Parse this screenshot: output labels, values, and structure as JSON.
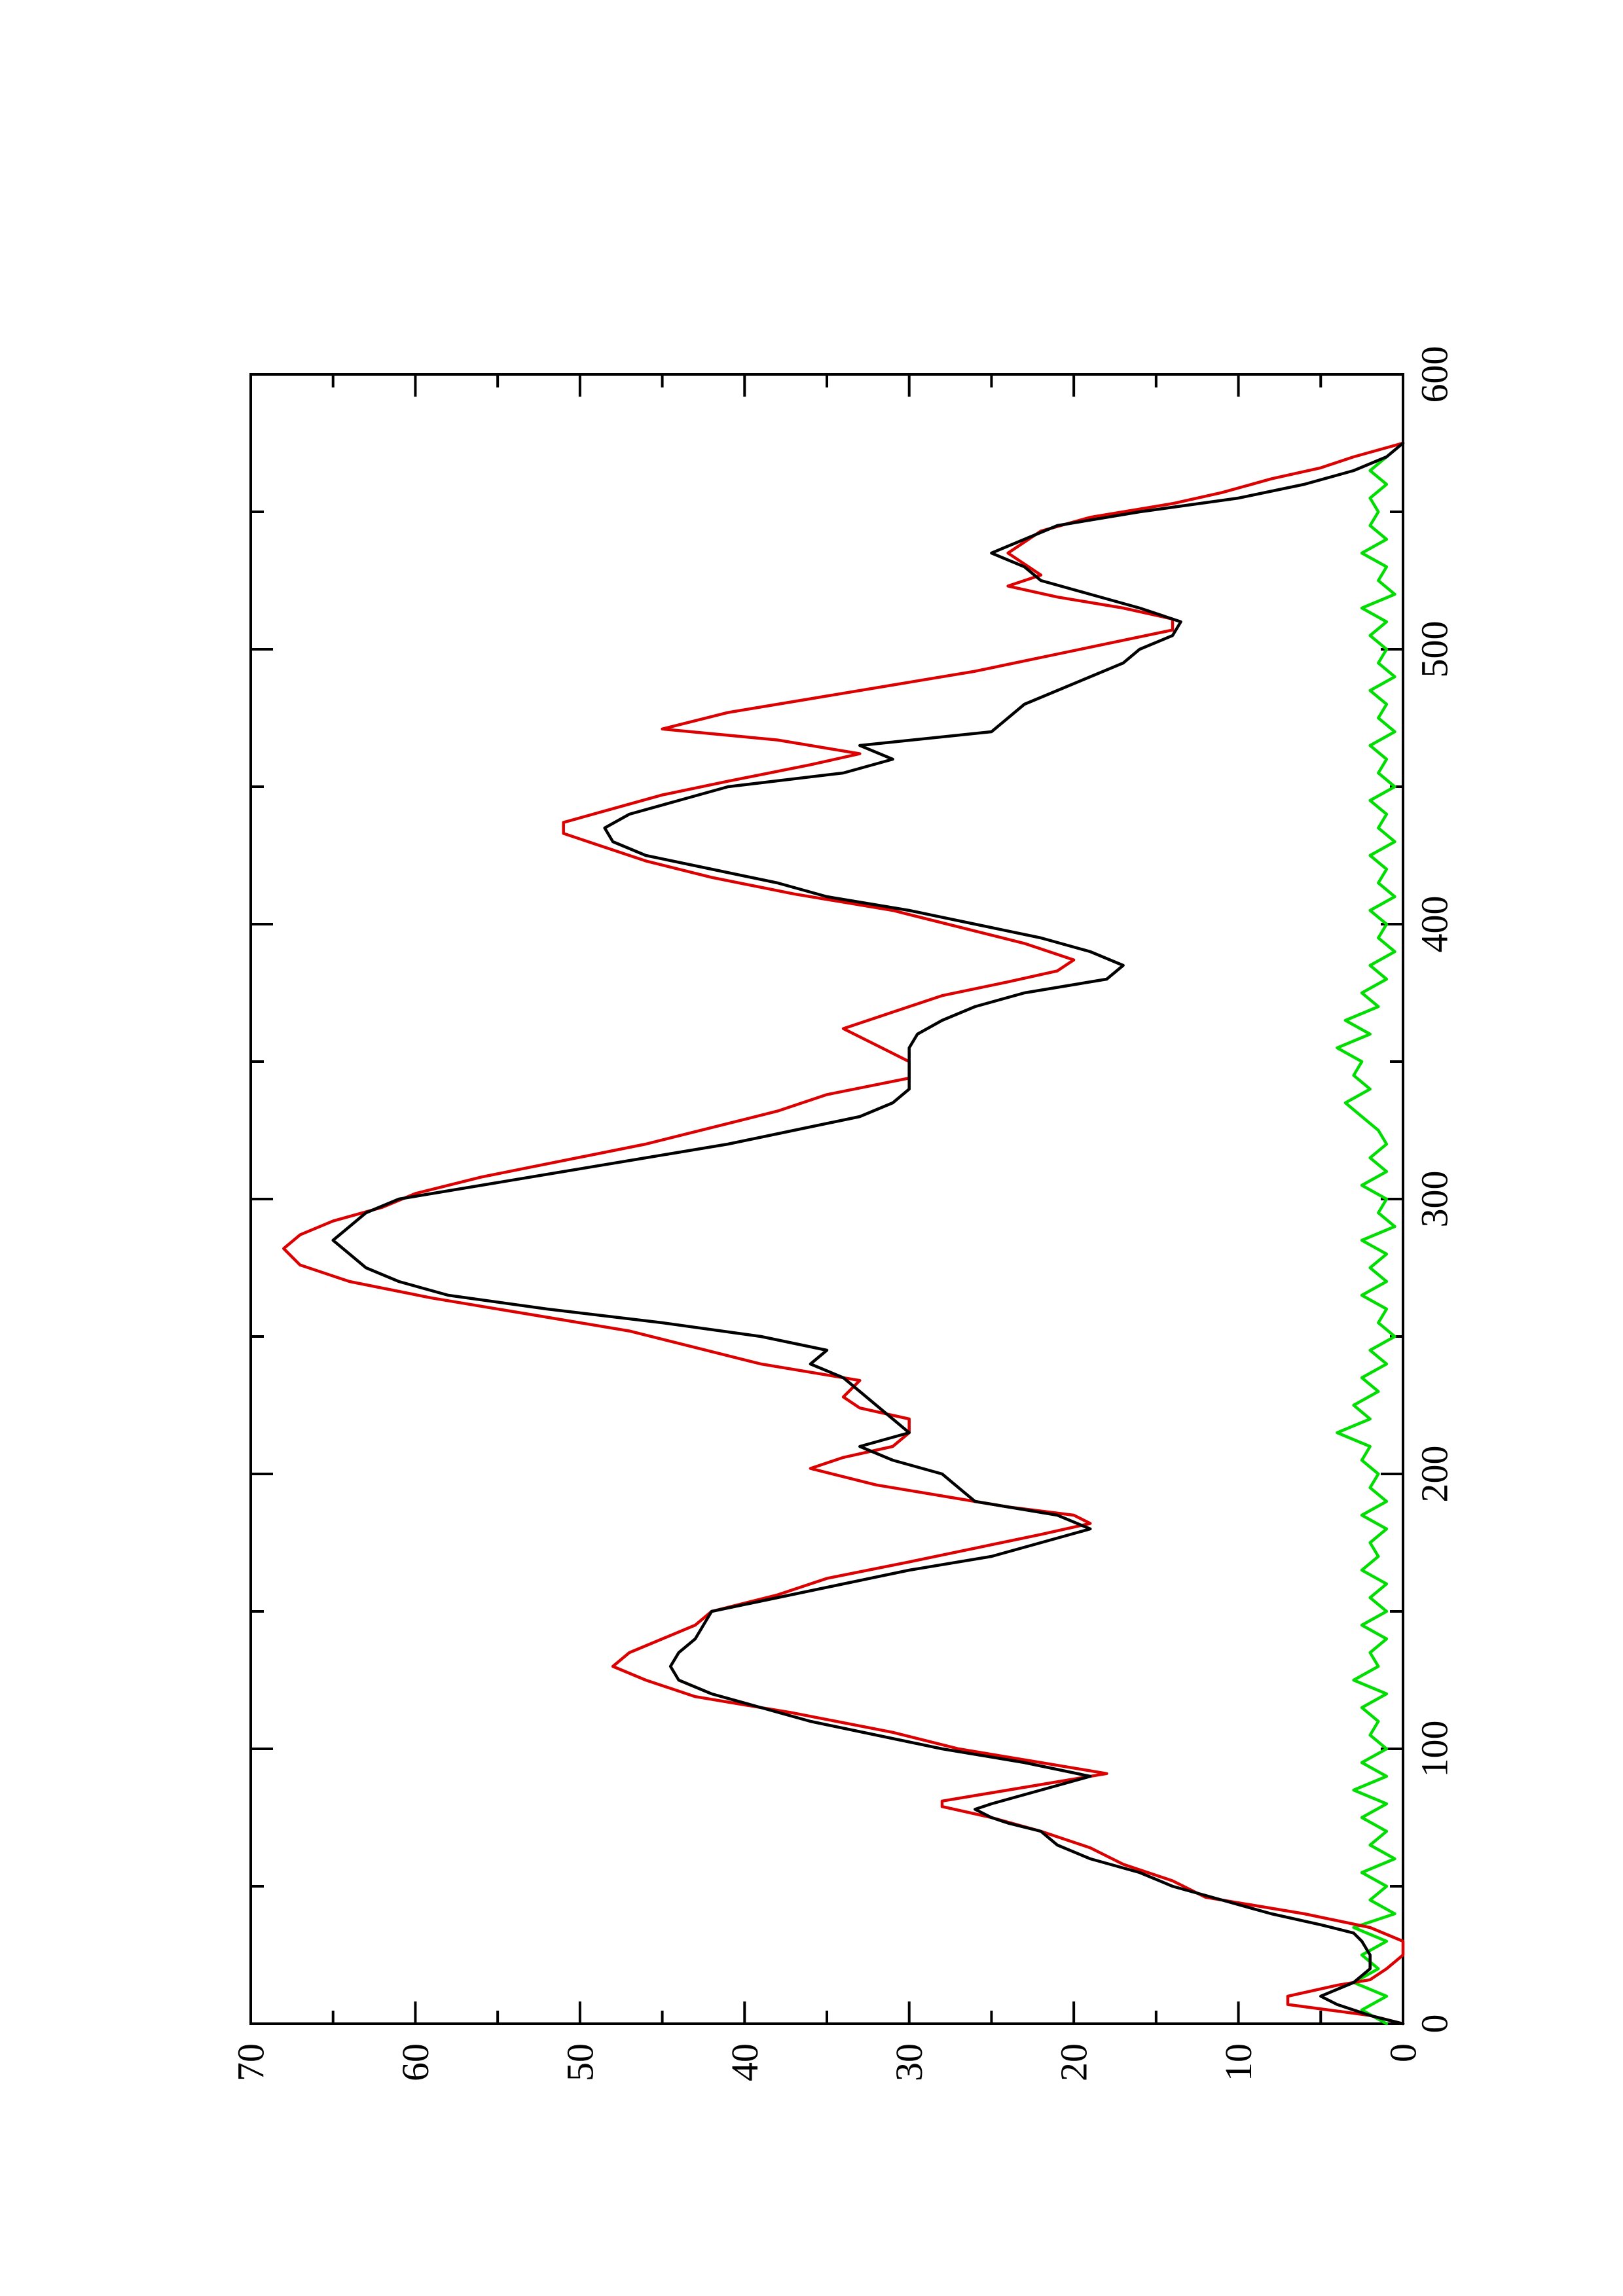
{
  "chart_data": {
    "type": "line",
    "orientation": "rotated-90-ccw",
    "xlim": [
      0,
      600
    ],
    "ylim": [
      0,
      70
    ],
    "x_ticks": [
      0,
      100,
      200,
      300,
      400,
      500,
      600
    ],
    "x_minor_ticks": [
      50,
      150,
      250,
      350,
      450,
      550
    ],
    "y_ticks": [
      0,
      10,
      20,
      30,
      40,
      50,
      60,
      70
    ],
    "y_minor_ticks": [
      5,
      15,
      25,
      35,
      45,
      55,
      65
    ],
    "x_tick_labels": [
      "0",
      "100",
      "200",
      "300",
      "400",
      "500",
      "600"
    ],
    "y_tick_labels": [
      "0",
      "10",
      "20",
      "30",
      "40",
      "50",
      "60",
      "70"
    ],
    "title": "",
    "xlabel": "",
    "ylabel": "",
    "grid": false,
    "legend": "none",
    "series": [
      {
        "color": "#000000",
        "x": [
          0,
          3,
          7,
          10,
          15,
          20,
          25,
          30,
          33,
          36,
          40,
          45,
          50,
          55,
          60,
          65,
          70,
          73,
          75,
          78,
          80,
          85,
          90,
          95,
          100,
          105,
          110,
          115,
          120,
          125,
          130,
          135,
          140,
          145,
          150,
          155,
          160,
          165,
          170,
          175,
          180,
          185,
          190,
          195,
          200,
          205,
          210,
          215,
          220,
          225,
          230,
          235,
          240,
          245,
          250,
          255,
          260,
          265,
          270,
          275,
          280,
          285,
          290,
          295,
          300,
          305,
          310,
          315,
          320,
          325,
          330,
          335,
          340,
          345,
          350,
          355,
          360,
          365,
          370,
          375,
          380,
          385,
          390,
          395,
          400,
          405,
          410,
          415,
          420,
          425,
          430,
          435,
          440,
          445,
          450,
          455,
          460,
          465,
          470,
          475,
          480,
          485,
          490,
          495,
          500,
          505,
          510,
          515,
          520,
          525,
          530,
          535,
          540,
          545,
          550,
          555,
          560,
          565,
          570,
          575
        ],
        "y": [
          0,
          2,
          4,
          5,
          3,
          2,
          2,
          2.5,
          3,
          5,
          8,
          11,
          14,
          16,
          19,
          21,
          22,
          24,
          25,
          26,
          25,
          22,
          19,
          23,
          28,
          32,
          36,
          39,
          42,
          44,
          44.5,
          44,
          43,
          42.5,
          42,
          38,
          34,
          30,
          25,
          22,
          19,
          21,
          26,
          27,
          28,
          31,
          33,
          30,
          31,
          32,
          33,
          34,
          36,
          35,
          39,
          45,
          52,
          58,
          61,
          63,
          64,
          65,
          64,
          63,
          61,
          56,
          51,
          46,
          41,
          37,
          33,
          31,
          30,
          30,
          30,
          30,
          29.5,
          28,
          26,
          23,
          18,
          17,
          19,
          22,
          26,
          30,
          35,
          38,
          42,
          46,
          48,
          48.5,
          47,
          44,
          41,
          34,
          31,
          33,
          25,
          24,
          23,
          21,
          19,
          17,
          16,
          14,
          13.5,
          16,
          19,
          22,
          23,
          25,
          23,
          21,
          16,
          10,
          6,
          3,
          1,
          0
        ]
      },
      {
        "color": "#dd0000",
        "x": [
          0,
          3,
          7,
          10,
          14,
          16,
          20,
          25,
          30,
          35,
          40,
          46,
          52,
          58,
          64,
          70,
          75,
          79,
          81,
          83,
          85,
          88,
          91,
          95,
          100,
          106,
          113,
          119,
          125,
          130,
          135,
          140,
          145,
          150,
          156,
          162,
          168,
          173,
          178,
          182,
          185,
          188,
          192,
          196,
          202,
          206,
          210,
          215,
          220,
          224,
          228,
          234,
          240,
          246,
          252,
          258,
          264,
          270,
          276,
          282,
          287,
          292,
          297,
          302,
          308,
          314,
          320,
          326,
          332,
          338,
          344,
          350,
          356,
          362,
          368,
          374,
          379,
          383,
          387,
          393,
          399,
          405,
          411,
          417,
          423,
          429,
          433,
          437,
          442,
          447,
          452,
          458,
          462,
          467,
          471,
          477,
          482,
          487,
          492,
          497,
          502,
          507,
          511,
          515,
          519,
          523,
          527,
          531,
          535,
          539,
          543,
          548,
          553,
          557,
          562,
          566,
          570,
          575
        ],
        "y": [
          0,
          2,
          7,
          7,
          4,
          2,
          1,
          0,
          0,
          2,
          6,
          12,
          14,
          17,
          19,
          22,
          25,
          28,
          28,
          26,
          24,
          21,
          18,
          22,
          27,
          31,
          37,
          43,
          46,
          48,
          47,
          45,
          43,
          42,
          38,
          35,
          30,
          26,
          22,
          19,
          20,
          24,
          28,
          32,
          36,
          34,
          31,
          30,
          30,
          33,
          34,
          33,
          39,
          43,
          47,
          53,
          59,
          64,
          67,
          68,
          67,
          65,
          62,
          60,
          56,
          51,
          46,
          42,
          38,
          35,
          30,
          30,
          32,
          34,
          31,
          28,
          24,
          21,
          20,
          23,
          27,
          31,
          37,
          42,
          46,
          49,
          51,
          51,
          48,
          45,
          41,
          36,
          33,
          38,
          45,
          41,
          36,
          31,
          26,
          22,
          18,
          14,
          14,
          17,
          21,
          24,
          22,
          23,
          24,
          23,
          22,
          19,
          14,
          11,
          8,
          5,
          3,
          0
        ]
      },
      {
        "color": "#00dd00",
        "x": [
          0,
          5,
          10,
          15,
          20,
          25,
          30,
          35,
          40,
          45,
          50,
          55,
          60,
          65,
          70,
          75,
          80,
          85,
          90,
          95,
          100,
          105,
          110,
          115,
          120,
          125,
          130,
          135,
          140,
          145,
          150,
          155,
          160,
          165,
          170,
          175,
          180,
          185,
          190,
          195,
          200,
          205,
          210,
          215,
          220,
          225,
          230,
          235,
          240,
          245,
          250,
          255,
          260,
          265,
          270,
          275,
          280,
          285,
          290,
          295,
          300,
          305,
          310,
          315,
          320,
          325,
          330,
          335,
          340,
          345,
          350,
          355,
          360,
          365,
          370,
          375,
          380,
          385,
          390,
          395,
          400,
          405,
          410,
          415,
          420,
          425,
          430,
          435,
          440,
          445,
          450,
          455,
          460,
          465,
          470,
          475,
          480,
          485,
          490,
          495,
          500,
          505,
          510,
          515,
          520,
          525,
          530,
          535,
          540,
          545,
          550,
          555,
          560,
          565,
          570
        ],
        "y": [
          1,
          2.5,
          1,
          3,
          1.5,
          2.5,
          1,
          3,
          0.5,
          2,
          1,
          2.5,
          0.5,
          2,
          1,
          2.5,
          1,
          3,
          1,
          2.5,
          1,
          2,
          1.5,
          2.5,
          1,
          3,
          1.5,
          2,
          1,
          2.5,
          1,
          2,
          1,
          2.5,
          1.5,
          2,
          1,
          2.5,
          1,
          2,
          1.5,
          2.5,
          2,
          4,
          2,
          3,
          1.5,
          2.5,
          1,
          2,
          0.5,
          1.5,
          1,
          2.5,
          1,
          2,
          1,
          2.5,
          0.5,
          1.5,
          1,
          2.5,
          1,
          2,
          1,
          1.5,
          2.5,
          3.5,
          2,
          3,
          2.5,
          4,
          2,
          3.5,
          1.5,
          2.5,
          1,
          2,
          0.5,
          1.5,
          1,
          2,
          0.5,
          1.5,
          1,
          2,
          0.5,
          1.5,
          1,
          2,
          0.5,
          1.5,
          1,
          2,
          0.5,
          1.5,
          1,
          2,
          0.5,
          1.5,
          1,
          2,
          1,
          2.5,
          0.5,
          1.5,
          1,
          2.5,
          1,
          2,
          1.5,
          2,
          1,
          2,
          1
        ]
      }
    ]
  }
}
